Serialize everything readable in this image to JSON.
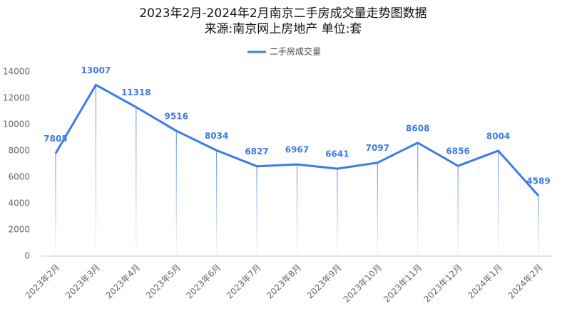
{
  "chart_data": {
    "type": "line",
    "title": "2023年2月-2024年2月南京二手房成交量走势图数据",
    "subtitle": "来源:南京网上房地产 单位:套",
    "categories": [
      "2023年2月",
      "2023年3月",
      "2023年4月",
      "2023年5月",
      "2023年6月",
      "2023年7月",
      "2023年8月",
      "2023年9月",
      "2023年10月",
      "2023年11月",
      "2023年12月",
      "2024年1月",
      "2024年2月"
    ],
    "series": [
      {
        "name": "二手房成交量",
        "color": "#3d7ce6",
        "values": [
          7805,
          13007,
          11318,
          9516,
          8034,
          6827,
          6967,
          6641,
          7097,
          8608,
          6856,
          8004,
          4589
        ]
      }
    ],
    "ylim": [
      0,
      14000
    ],
    "yticks": [
      0,
      2000,
      4000,
      6000,
      8000,
      10000,
      12000,
      14000
    ],
    "grid": false,
    "legend": "top"
  }
}
